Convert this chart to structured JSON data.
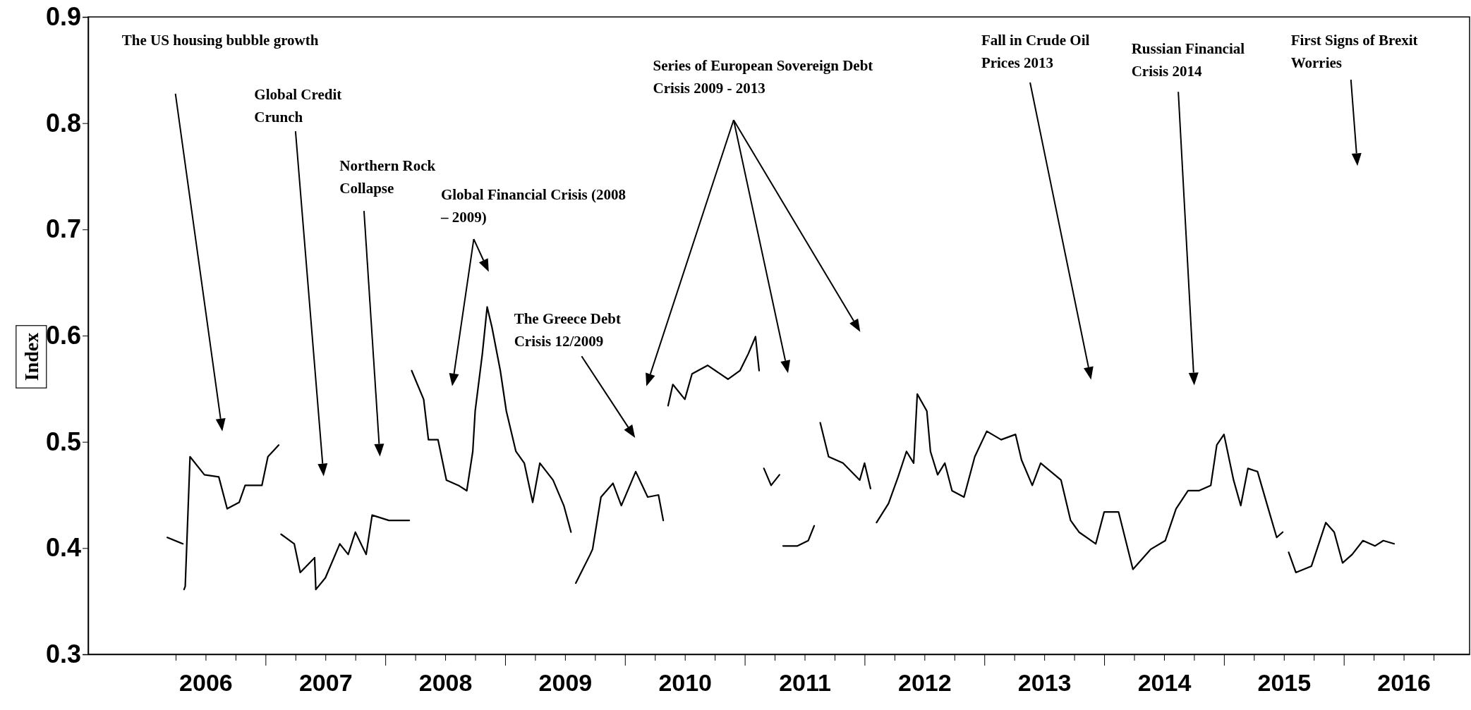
{
  "chart_data": {
    "type": "line",
    "ylabel": "Index",
    "xlim": [
      2005.52,
      2017.05
    ],
    "ylim": [
      0.3,
      0.9
    ],
    "yticks": [
      0.3,
      0.4,
      0.5,
      0.6,
      0.7,
      0.8,
      0.9
    ],
    "xticks": [
      {
        "value": 2006.25,
        "label": null
      },
      {
        "value": 2006.5,
        "label": "2006"
      },
      {
        "value": 2006.75,
        "label": null
      },
      {
        "value": 2007,
        "label": null
      },
      {
        "value": 2007.25,
        "label": null
      },
      {
        "value": 2007.5,
        "label": "2007"
      },
      {
        "value": 2007.75,
        "label": null
      },
      {
        "value": 2008,
        "label": null
      },
      {
        "value": 2008.25,
        "label": null
      },
      {
        "value": 2008.5,
        "label": "2008"
      },
      {
        "value": 2008.75,
        "label": null
      },
      {
        "value": 2009,
        "label": null
      },
      {
        "value": 2009.25,
        "label": null
      },
      {
        "value": 2009.5,
        "label": "2009"
      },
      {
        "value": 2009.75,
        "label": null
      },
      {
        "value": 2010,
        "label": null
      },
      {
        "value": 2010.25,
        "label": null
      },
      {
        "value": 2010.5,
        "label": "2010"
      },
      {
        "value": 2010.75,
        "label": null
      },
      {
        "value": 2011,
        "label": null
      },
      {
        "value": 2011.25,
        "label": null
      },
      {
        "value": 2011.5,
        "label": "2011"
      },
      {
        "value": 2011.75,
        "label": null
      },
      {
        "value": 2012,
        "label": null
      },
      {
        "value": 2012.25,
        "label": null
      },
      {
        "value": 2012.5,
        "label": "2012"
      },
      {
        "value": 2012.75,
        "label": null
      },
      {
        "value": 2013,
        "label": null
      },
      {
        "value": 2013.25,
        "label": null
      },
      {
        "value": 2013.5,
        "label": "2013"
      },
      {
        "value": 2013.75,
        "label": null
      },
      {
        "value": 2014,
        "label": null
      },
      {
        "value": 2014.25,
        "label": null
      },
      {
        "value": 2014.5,
        "label": "2014"
      },
      {
        "value": 2014.75,
        "label": null
      },
      {
        "value": 2015,
        "label": null
      },
      {
        "value": 2015.25,
        "label": null
      },
      {
        "value": 2015.5,
        "label": "2015"
      },
      {
        "value": 2015.75,
        "label": null
      },
      {
        "value": 2016,
        "label": null
      },
      {
        "value": 2016.25,
        "label": null
      },
      {
        "value": 2016.5,
        "label": "2016"
      },
      {
        "value": 2016.75,
        "label": null
      }
    ],
    "grid": false,
    "marker": "none",
    "line_style": "solid",
    "series": [
      {
        "color": "#000000",
        "x": [
          2006.18,
          2006.31,
          2006.315,
          2006.32,
          2006.33,
          2006.37,
          2006.49,
          2006.61,
          2006.68,
          2006.78,
          2006.83,
          2006.97,
          2007.02,
          2007.11,
          2007.12,
          2007.13,
          2007.24,
          2007.29,
          2007.41,
          2007.42,
          2007.5,
          2007.62,
          2007.69,
          2007.75,
          2007.84,
          2007.89,
          2008.03,
          2008.2,
          2008.21,
          2008.22,
          2008.32,
          2008.36,
          2008.44,
          2008.51,
          2008.61,
          2008.68,
          2008.73,
          2008.75,
          2008.81,
          2008.85,
          2008.89,
          2008.96,
          2009.01,
          2009.09,
          2009.16,
          2009.23,
          2009.29,
          2009.4,
          2009.49,
          2009.55,
          2009.57,
          2009.59,
          2009.71,
          2009.73,
          2009.8,
          2009.9,
          2009.97,
          2010.09,
          2010.19,
          2010.28,
          2010.32,
          2010.34,
          2010.36,
          2010.4,
          2010.5,
          2010.56,
          2010.69,
          2010.86,
          2010.96,
          2011.03,
          2011.09,
          2011.12,
          2011.14,
          2011.16,
          2011.22,
          2011.29,
          2011.3,
          2011.32,
          2011.44,
          2011.53,
          2011.58,
          2011.6,
          2011.63,
          2011.7,
          2011.82,
          2011.96,
          2012,
          2012.05,
          2012.07,
          2012.1,
          2012.2,
          2012.28,
          2012.35,
          2012.41,
          2012.44,
          2012.52,
          2012.55,
          2012.61,
          2012.67,
          2012.73,
          2012.83,
          2012.92,
          2013.02,
          2013.14,
          2013.26,
          2013.31,
          2013.4,
          2013.47,
          2013.64,
          2013.72,
          2013.79,
          2013.93,
          2014,
          2014.12,
          2014.24,
          2014.39,
          2014.51,
          2014.6,
          2014.7,
          2014.79,
          2014.89,
          2014.94,
          2015,
          2015.08,
          2015.14,
          2015.2,
          2015.28,
          2015.37,
          2015.44,
          2015.49,
          2015.51,
          2015.54,
          2015.6,
          2015.73,
          2015.8,
          2015.85,
          2015.92,
          2015.99,
          2016.07,
          2016.16,
          2016.26,
          2016.33,
          2016.42
        ],
        "values": [
          0.41,
          0.404,
          null,
          0.361,
          0.364,
          0.486,
          0.469,
          0.467,
          0.437,
          0.443,
          0.459,
          0.459,
          0.486,
          0.497,
          null,
          0.413,
          0.404,
          0.377,
          0.391,
          0.361,
          0.372,
          0.404,
          0.394,
          0.415,
          0.394,
          0.431,
          0.426,
          0.426,
          null,
          0.567,
          0.54,
          0.502,
          0.502,
          0.464,
          0.459,
          0.454,
          0.491,
          0.529,
          0.583,
          0.627,
          0.608,
          0.567,
          0.529,
          0.491,
          0.48,
          0.443,
          0.48,
          0.464,
          0.44,
          0.415,
          null,
          0.367,
          0.394,
          0.399,
          0.448,
          0.461,
          0.44,
          0.472,
          0.448,
          0.45,
          0.426,
          null,
          0.534,
          0.554,
          0.54,
          0.564,
          0.572,
          0.559,
          0.567,
          0.583,
          0.599,
          0.567,
          null,
          0.475,
          0.459,
          0.469,
          null,
          0.402,
          0.402,
          0.407,
          0.421,
          null,
          0.518,
          0.486,
          0.48,
          0.464,
          0.48,
          0.456,
          null,
          0.424,
          0.442,
          0.467,
          0.491,
          0.48,
          0.545,
          0.529,
          0.491,
          0.469,
          0.48,
          0.454,
          0.448,
          0.486,
          0.51,
          0.502,
          0.507,
          0.483,
          0.459,
          0.48,
          0.464,
          0.426,
          0.415,
          0.404,
          0.434,
          0.434,
          0.38,
          0.399,
          0.407,
          0.437,
          0.454,
          0.454,
          0.459,
          0.497,
          0.507,
          0.464,
          0.44,
          0.475,
          0.472,
          0.437,
          0.41,
          0.415,
          null,
          0.396,
          0.377,
          0.383,
          0.407,
          0.424,
          0.415,
          0.386,
          0.394,
          0.407,
          0.402,
          0.407,
          0.404
        ]
      }
    ],
    "annotations": [
      "The US housing bubble growth",
      "Global Credit Crunch",
      "Northern Rock Collapse",
      "Global Financial Crisis (2008 – 2009)",
      "The Greece Debt Crisis 12/2009",
      "Series of European Sovereign Debt Crisis 2009 - 2013",
      "Fall in Crude Oil Prices 2013",
      "Russian Financial Crisis 2014",
      "First Signs of Brexit Worries"
    ]
  }
}
